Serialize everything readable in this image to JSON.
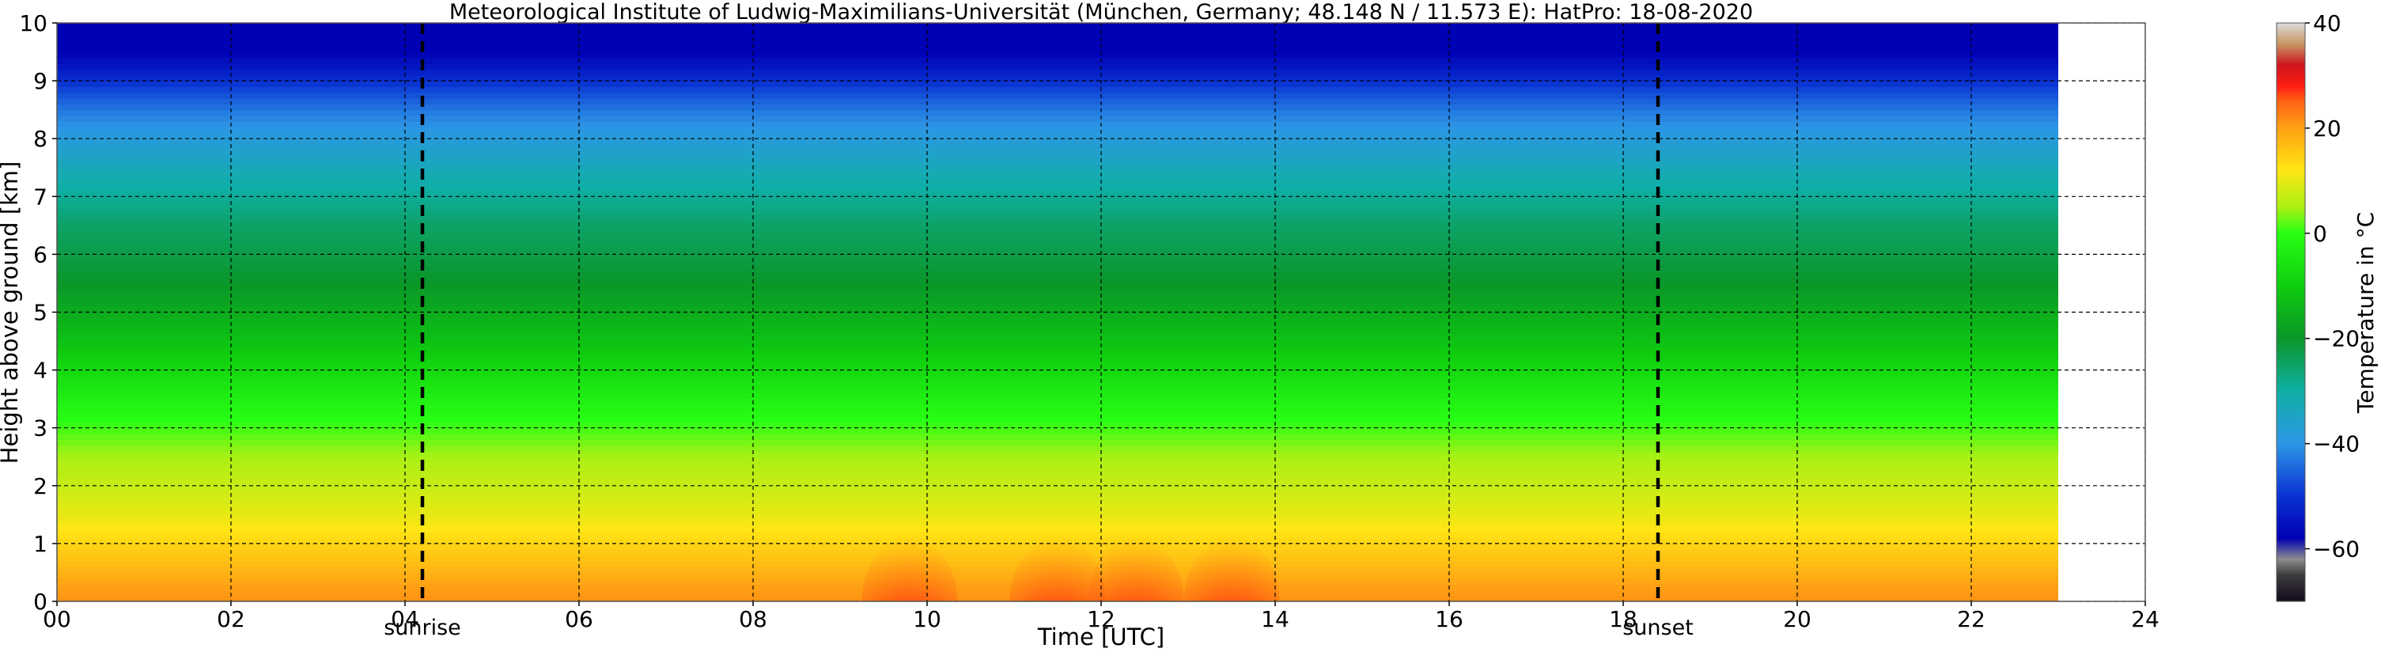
{
  "chart_data": {
    "type": "heatmap",
    "title": "Meteorological Institute of Ludwig-Maximilians-Universität (München, Germany; 48.148 N / 11.573 E):    HatPro: 18-08-2020",
    "xlabel": "Time [UTC]",
    "ylabel": "Height above ground [km]",
    "xlim": [
      0,
      24
    ],
    "ylim": [
      0,
      10
    ],
    "data_end_time": 23.0,
    "x_ticks": [
      0,
      2,
      4,
      6,
      8,
      10,
      12,
      14,
      16,
      18,
      20,
      22,
      24
    ],
    "x_tick_labels": [
      "00",
      "02",
      "04",
      "06",
      "08",
      "10",
      "12",
      "14",
      "16",
      "18",
      "20",
      "22",
      "24"
    ],
    "y_ticks": [
      0,
      1,
      2,
      3,
      4,
      5,
      6,
      7,
      8,
      9,
      10
    ],
    "y_tick_labels": [
      "0",
      "1",
      "2",
      "3",
      "4",
      "5",
      "6",
      "7",
      "8",
      "9",
      "10"
    ],
    "grid": true,
    "grid_style": "dashed",
    "events": [
      {
        "label": "sunrise",
        "time": 4.2
      },
      {
        "label": "sunset",
        "time": 18.4
      }
    ],
    "heights_km": [
      0.25,
      0.75,
      1.5,
      2.5,
      3.5,
      4.5,
      5.5,
      6.5,
      7.5,
      8.5,
      9.5
    ],
    "temperature_profile_c": [
      20,
      16,
      10,
      5,
      -3,
      -12,
      -20,
      -25,
      -33,
      -43,
      -58
    ],
    "surface_warm_spots": [
      {
        "time": 9.8,
        "surface_temp_c": 28
      },
      {
        "time": 11.5,
        "surface_temp_c": 28
      },
      {
        "time": 12.4,
        "surface_temp_c": 30
      },
      {
        "time": 13.5,
        "surface_temp_c": 30
      }
    ],
    "colorbar": {
      "label": "Temperature in $^\\circ$C",
      "label_text": "Temperature in °C",
      "min": -70,
      "max": 40,
      "ticks": [
        40,
        20,
        0,
        -20,
        -40,
        -60
      ],
      "tick_labels": [
        "40",
        "20",
        "0",
        "−20",
        "−40",
        "−60"
      ],
      "stops": [
        {
          "t": -70,
          "color": "#140a1e"
        },
        {
          "t": -65,
          "color": "#3c3c3c"
        },
        {
          "t": -62,
          "color": "#8c8c8c"
        },
        {
          "t": -58,
          "color": "#0000b4"
        },
        {
          "t": -50,
          "color": "#0a32d2"
        },
        {
          "t": -40,
          "color": "#2d96e6"
        },
        {
          "t": -30,
          "color": "#0fafa5"
        },
        {
          "t": -20,
          "color": "#0a9628"
        },
        {
          "t": -10,
          "color": "#0fcd0f"
        },
        {
          "t": 0,
          "color": "#28ff14"
        },
        {
          "t": 5,
          "color": "#aaf014"
        },
        {
          "t": 12,
          "color": "#ffe614"
        },
        {
          "t": 20,
          "color": "#ffa014"
        },
        {
          "t": 25,
          "color": "#ff6414"
        },
        {
          "t": 28,
          "color": "#ff1e14"
        },
        {
          "t": 32,
          "color": "#cd141e"
        },
        {
          "t": 36,
          "color": "#c89664"
        },
        {
          "t": 40,
          "color": "#dcdcdc"
        }
      ]
    }
  }
}
